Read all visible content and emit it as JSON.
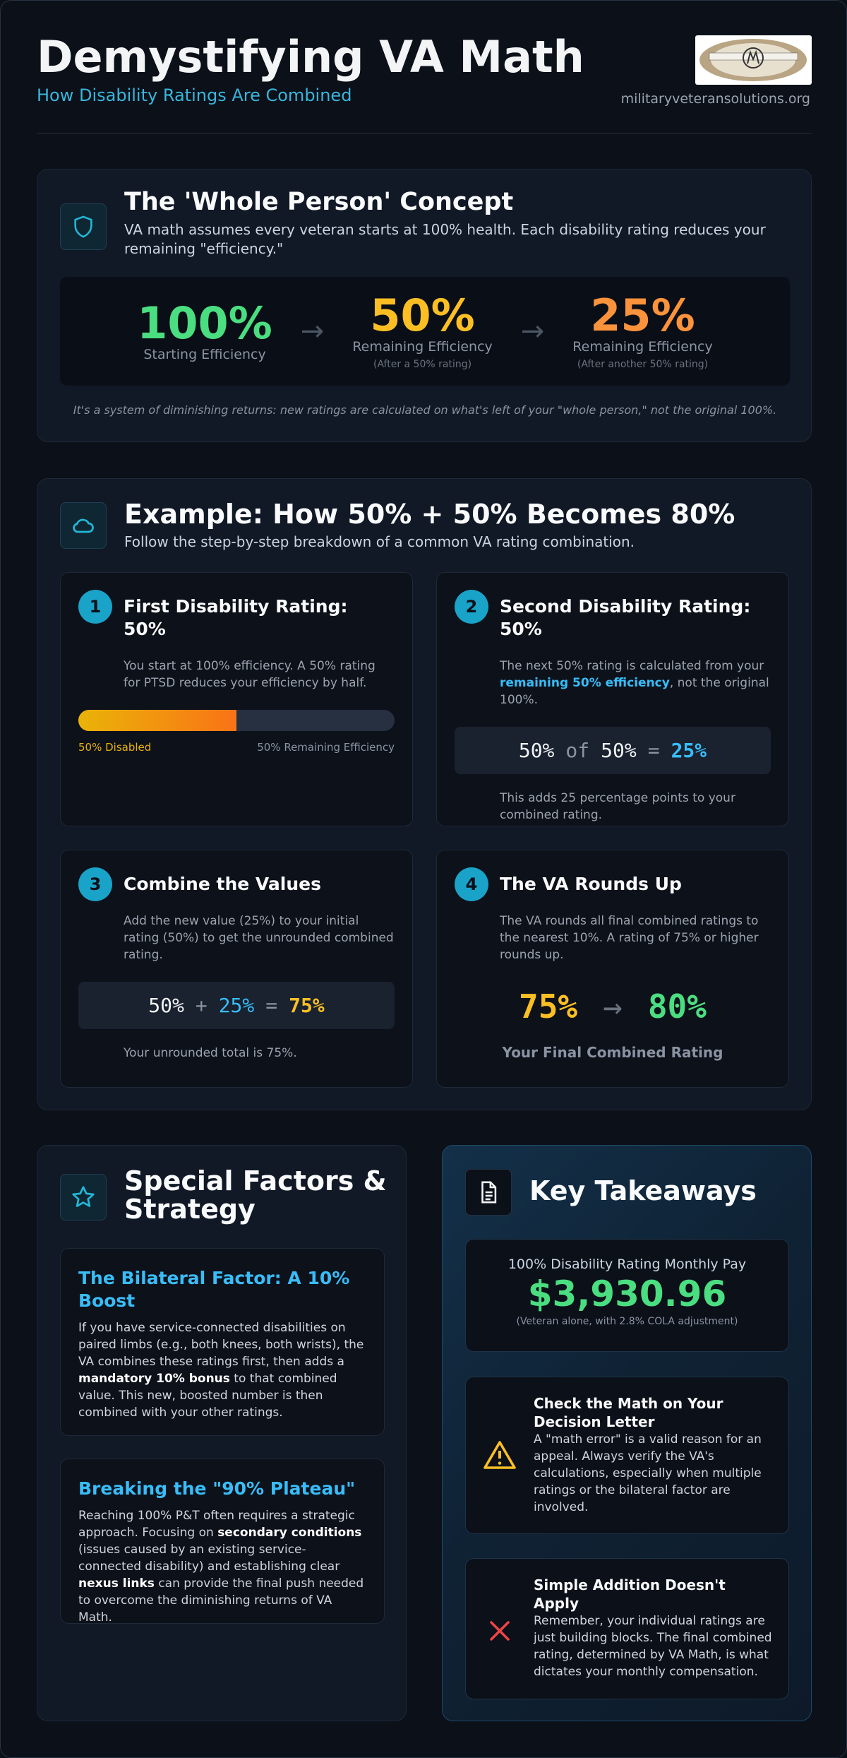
{
  "header": {
    "title": "Demystifying VA Math",
    "subtitle": "How Disability Ratings Are Combined",
    "website": "militaryveteransolutions.org"
  },
  "concept": {
    "title": "The 'Whole Person' Concept",
    "description": "VA math assumes every veteran starts at 100% health. Each disability rating reduces your remaining \"efficiency.\"",
    "steps": [
      {
        "value": "100%",
        "label": "Starting Efficiency"
      },
      {
        "value": "50%",
        "label": "Remaining Efficiency",
        "note": "(After a 50% rating)"
      },
      {
        "value": "25%",
        "label": "Remaining Efficiency",
        "note": "(After another 50% rating)"
      }
    ],
    "footnote": "It's a system of diminishing returns: new ratings are calculated on what's left of your \"whole person,\" not the original 100%."
  },
  "example": {
    "title": "Example: How 50% + 50% Becomes 80%",
    "description": "Follow the step-by-step breakdown of a common VA rating combination.",
    "steps": [
      {
        "number": "1",
        "title": "First Disability Rating: 50%",
        "text": [
          "You start at 100% efficiency. A 50% rating for PTSD reduces your efficiency by half."
        ],
        "progress": 50,
        "progress_range": [
          0,
          100
        ],
        "progress_labels": [
          "50% Disabled",
          "50% Remaining Efficiency"
        ]
      },
      {
        "number": "2",
        "title": "Second Disability Rating: 50%",
        "text": [
          "The next 50% rating is calculated from your ",
          {
            "strong": "remaining 50% efficiency"
          },
          ", not the original 100%."
        ],
        "equation": [
          {
            "text": "50%",
            "color": "#f3f4f6"
          },
          {
            "text": "of",
            "color": "#8b93a3"
          },
          {
            "text": "50%",
            "color": "#f3f4f6"
          },
          {
            "text": "=",
            "color": "#8b93a3"
          },
          {
            "text": "25%",
            "color": "#38bdf8"
          }
        ],
        "note": "This adds 25 percentage points to your combined rating."
      },
      {
        "number": "3",
        "title": "Combine the Values",
        "text": [
          "Add the new value (25%) to your initial rating (50%) to get the unrounded combined rating."
        ],
        "equation": [
          {
            "text": "50%",
            "color": "#f3f4f6"
          },
          {
            "text": "+",
            "color": "#8b93a3"
          },
          {
            "text": "25%",
            "color": "#38bdf8"
          },
          {
            "text": "=",
            "color": "#8b93a3"
          },
          {
            "text": "75%",
            "color": "#fbbf24"
          }
        ],
        "note": "Your unrounded total is 75%."
      },
      {
        "number": "4",
        "title": "The VA Rounds Up",
        "text": [
          "The VA rounds all final combined ratings to the nearest 10%. A rating of 75% or higher rounds up."
        ],
        "result": [
          "75%",
          "80%"
        ],
        "caption": "Your Final Combined Rating"
      }
    ]
  },
  "special": {
    "title": "Special Factors & Strategy",
    "items": [
      {
        "title": "The Bilateral Factor: A 10% Boost",
        "text": [
          "If you have service-connected disabilities on paired limbs (e.g., both knees, both wrists), the VA combines these ratings first, then adds a ",
          {
            "strong": "mandatory 10% bonus"
          },
          " to that combined value. This new, boosted number is then combined with your other ratings."
        ]
      },
      {
        "title": "Breaking the \"90% Plateau\"",
        "text": [
          "Reaching 100% P&T often requires a strategic approach. Focusing on ",
          {
            "strong": "secondary conditions"
          },
          " (issues caused by an existing service-connected disability) and establishing clear ",
          {
            "strong": "nexus links"
          },
          " can provide the final push needed to overcome the diminishing returns of VA Math."
        ]
      }
    ]
  },
  "takeaways": {
    "title": "Key Takeaways",
    "pay": {
      "label": "100% Disability Rating Monthly Pay",
      "amount": "$3,930.96",
      "note": "(Veteran alone, with 2.8% COLA adjustment)"
    },
    "items": [
      {
        "title": "Check the Math on Your Decision Letter",
        "text": "A \"math error\" is a valid reason for an appeal. Always verify the VA's calculations, especially when multiple ratings or the bilateral factor are involved."
      },
      {
        "title": "Simple Addition Doesn't Apply",
        "text": "Remember, your individual ratings are just building blocks. The final combined rating, determined by VA Math, is what dictates your monthly compensation."
      }
    ]
  }
}
